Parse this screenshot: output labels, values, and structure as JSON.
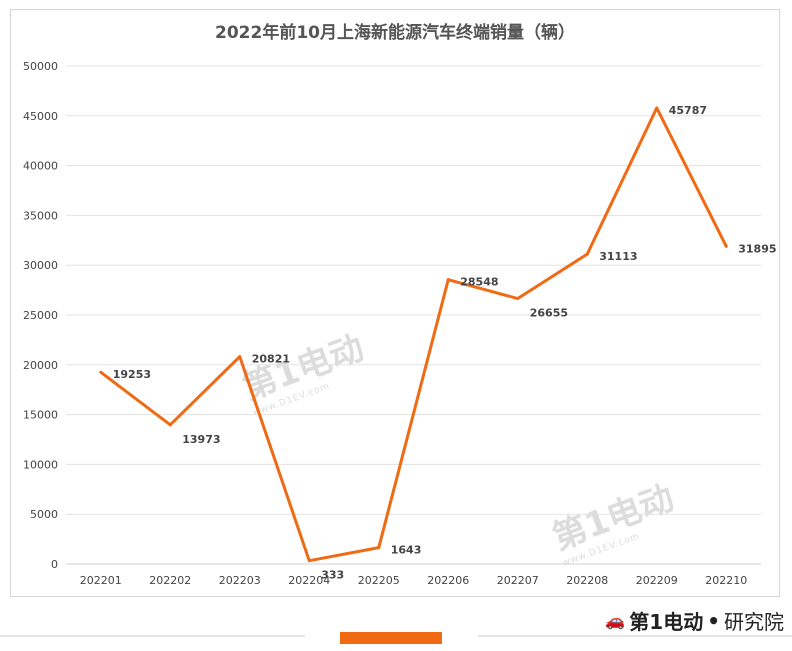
{
  "chart_data": {
    "type": "line",
    "title": "2022年前10月上海新能源汽车终端销量（辆）",
    "categories": [
      "202201",
      "202202",
      "202203",
      "202204",
      "202205",
      "202206",
      "202207",
      "202208",
      "202209",
      "202210"
    ],
    "series": [
      {
        "values": [
          19253,
          13973,
          20821,
          333,
          1643,
          28548,
          26655,
          31113,
          45787,
          31895
        ]
      }
    ],
    "ylim": [
      0,
      50000
    ],
    "yticks": [
      0,
      5000,
      10000,
      15000,
      20000,
      25000,
      30000,
      35000,
      40000,
      45000,
      50000
    ],
    "grid": true,
    "line_color": "#f06a13"
  },
  "watermark": {
    "text": "第1电动",
    "url": "www.D1EV.com"
  },
  "brand": {
    "name": "第1电动",
    "separator": "•",
    "suffix": "研究院"
  }
}
